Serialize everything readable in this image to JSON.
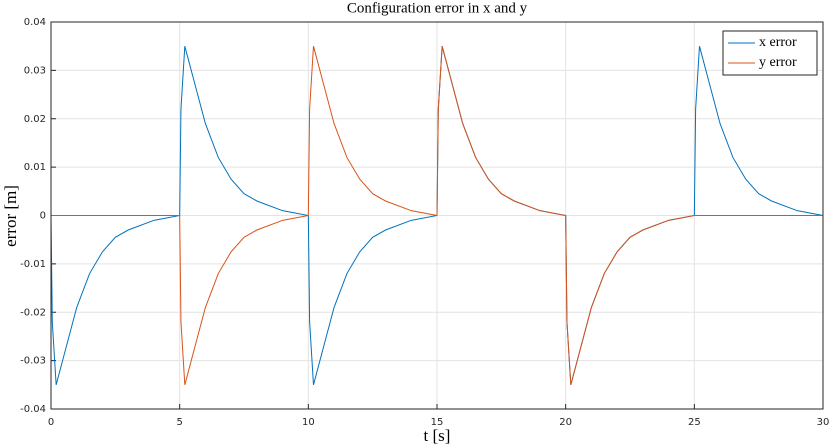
{
  "chart_data": {
    "type": "line",
    "title": "Configuration error in x and y",
    "x_label": "t [s]",
    "y_label": "error [m]",
    "x": [
      0,
      0.05,
      0.2,
      0.5,
      1,
      1.5,
      2,
      2.5,
      3,
      4,
      5,
      5.05,
      5.2,
      5.5,
      6,
      6.5,
      7,
      7.5,
      8,
      9,
      10,
      10.05,
      10.2,
      10.5,
      11,
      11.5,
      12,
      12.5,
      13,
      14,
      15,
      15.05,
      15.2,
      15.5,
      16,
      16.5,
      17,
      17.5,
      18,
      19,
      20,
      20.05,
      20.2,
      20.5,
      21,
      21.5,
      22,
      22.5,
      23,
      24,
      25,
      25.05,
      25.2,
      25.5,
      26,
      26.5,
      27,
      27.5,
      28,
      29,
      30
    ],
    "series": [
      {
        "name": "x error",
        "color": "#0072BD",
        "values": [
          0,
          -0.022,
          -0.035,
          -0.029,
          -0.019,
          -0.012,
          -0.0075,
          -0.0045,
          -0.003,
          -0.001,
          0,
          0.022,
          0.035,
          0.029,
          0.019,
          0.012,
          0.0075,
          0.0045,
          0.003,
          0.001,
          0,
          -0.022,
          -0.035,
          -0.029,
          -0.019,
          -0.012,
          -0.0075,
          -0.0045,
          -0.003,
          -0.001,
          0,
          0.022,
          0.035,
          0.029,
          0.019,
          0.012,
          0.0075,
          0.0045,
          0.003,
          0.001,
          0,
          -0.022,
          -0.035,
          -0.029,
          -0.019,
          -0.012,
          -0.0075,
          -0.0045,
          -0.003,
          -0.001,
          0,
          0.022,
          0.035,
          0.029,
          0.019,
          0.012,
          0.0075,
          0.0045,
          0.003,
          0.001,
          0
        ]
      },
      {
        "name": "y error",
        "color": "#D95319",
        "values": [
          0,
          0,
          0,
          0,
          0,
          0,
          0,
          0,
          0,
          0,
          0,
          -0.022,
          -0.035,
          -0.029,
          -0.019,
          -0.012,
          -0.0075,
          -0.0045,
          -0.003,
          -0.001,
          0,
          0.022,
          0.035,
          0.029,
          0.019,
          0.012,
          0.0075,
          0.0045,
          0.003,
          0.001,
          0,
          0.022,
          0.035,
          0.029,
          0.019,
          0.012,
          0.0075,
          0.0045,
          0.003,
          0.001,
          0,
          -0.022,
          -0.035,
          -0.029,
          -0.019,
          -0.012,
          -0.0075,
          -0.0045,
          -0.003,
          -0.001,
          0,
          0,
          0,
          0,
          0,
          0,
          0,
          0,
          0,
          0,
          0
        ]
      }
    ],
    "xlim": [
      0,
      30
    ],
    "xticks": [
      0,
      5,
      10,
      15,
      20,
      25,
      30
    ],
    "ylim": [
      -0.04,
      0.04
    ],
    "yticks": [
      -0.04,
      -0.03,
      -0.02,
      -0.01,
      0,
      0.01,
      0.02,
      0.03,
      0.04
    ],
    "grid": true,
    "legend": "top-right"
  }
}
